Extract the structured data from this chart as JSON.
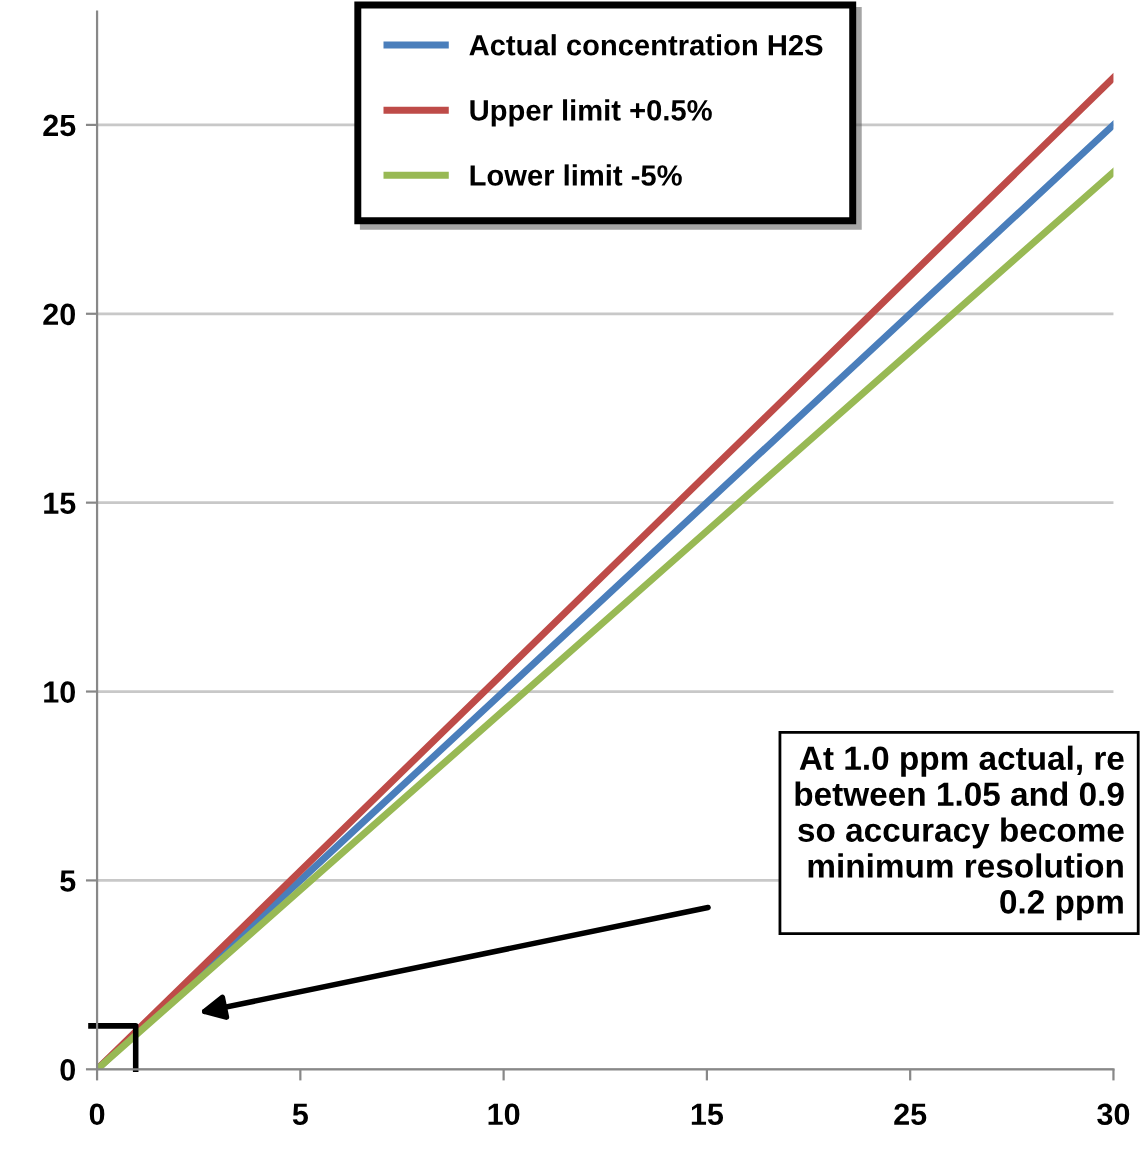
{
  "chart_data": {
    "type": "line",
    "categories": [
      "0",
      "5",
      "10",
      "15",
      "25",
      "30"
    ],
    "series": [
      {
        "name": "Actual concentration H2S",
        "color": "#4a7ebb",
        "values": [
          0,
          5,
          10,
          15,
          20,
          25
        ]
      },
      {
        "name": "Upper limit +0.5%",
        "color": "#be4b48",
        "values": [
          0,
          5.25,
          10.5,
          15.75,
          21,
          26.25
        ]
      },
      {
        "name": "Lower limit -5%",
        "color": "#98b954",
        "values": [
          0,
          4.75,
          9.5,
          14.25,
          19,
          23.75
        ]
      }
    ],
    "ylim": [
      0,
      28
    ],
    "yticks": [
      0,
      5,
      10,
      15,
      20,
      25
    ],
    "grid": "y",
    "legend": "top",
    "marker": "none",
    "line_style": "solid",
    "annotations": [
      "At 1.0 ppm actual, re\nbetween 1.05 and 0.9\nso accuracy become\nminimum resolution\n0.2 ppm"
    ]
  }
}
